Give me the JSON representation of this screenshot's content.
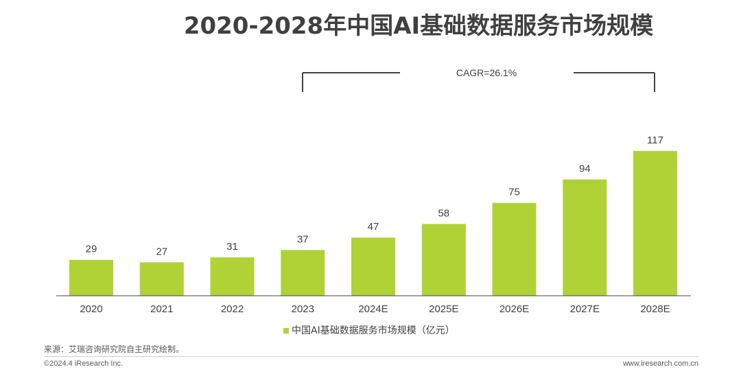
{
  "title": "2020-2028年中国AI基础数据服务市场规模",
  "chart_data": {
    "type": "bar",
    "categories": [
      "2020",
      "2021",
      "2022",
      "2023",
      "2024E",
      "2025E",
      "2026E",
      "2027E",
      "2028E"
    ],
    "series": [
      {
        "name": "中国AI基础数据服务市场规模（亿元）",
        "values": [
          29,
          27,
          31,
          37,
          47,
          58,
          75,
          94,
          117
        ]
      }
    ],
    "ylim": [
      0,
      117
    ],
    "annotation": "CAGR=26.1%",
    "legend_position": "bottom-center",
    "grid": false,
    "bar_color": "#b0d236"
  },
  "source": "来源：艾瑞咨询研究院自主研究绘制。",
  "copyright": "©2024.4 iResearch Inc.",
  "website": "www.iresearch.com.cn"
}
